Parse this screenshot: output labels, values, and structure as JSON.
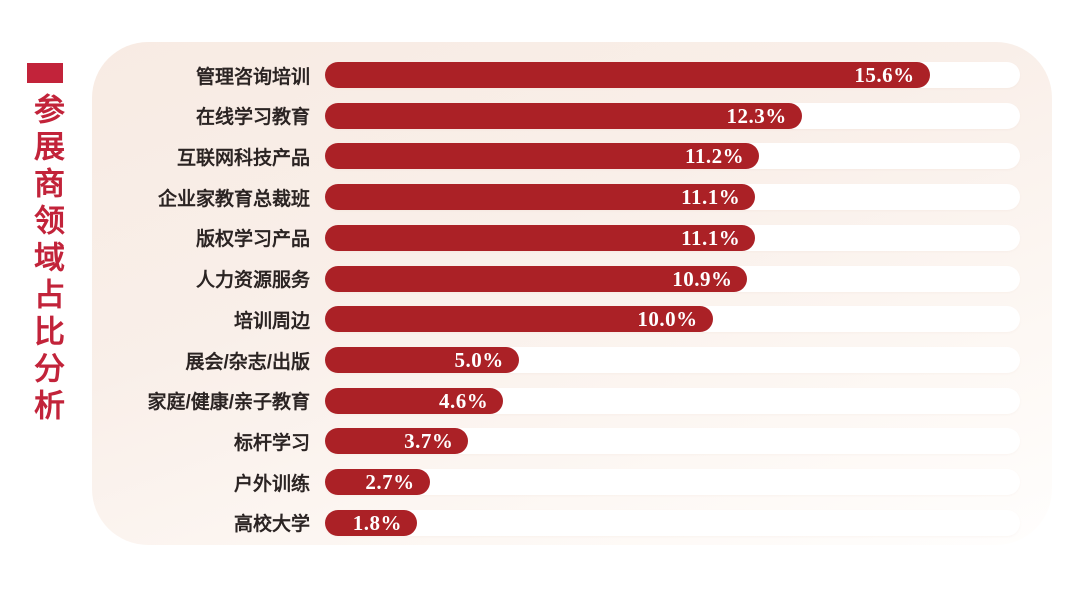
{
  "title": {
    "text": "参展商领域占比分析"
  },
  "colors": {
    "accent": "#c2233a",
    "bar": "#ab2126",
    "track": "#ffffff",
    "label": "#2b2423",
    "value_text": "#ffffff",
    "panel_top": "#f8ebe3",
    "page_bg": "#ffffff"
  },
  "chart_data": {
    "type": "bar",
    "orientation": "horizontal",
    "title": "参展商领域占比分析",
    "categories": [
      "管理咨询培训",
      "在线学习教育",
      "互联网科技产品",
      "企业家教育总裁班",
      "版权学习产品",
      "人力资源服务",
      "培训周边",
      "展会/杂志/出版",
      "家庭/健康/亲子教育",
      "标杆学习",
      "户外训练",
      "高校大学"
    ],
    "values": [
      15.6,
      12.3,
      11.2,
      11.1,
      11.1,
      10.9,
      10.0,
      5.0,
      4.6,
      3.7,
      2.7,
      1.8
    ],
    "value_labels": [
      "15.6%",
      "12.3%",
      "11.2%",
      "11.1%",
      "11.1%",
      "10.9%",
      "10.0%",
      "5.0%",
      "4.6%",
      "3.7%",
      "2.7%",
      "1.8%"
    ],
    "xlabel": "",
    "ylabel": "",
    "xlim": [
      0,
      16
    ],
    "grid": false,
    "legend": false,
    "max_bar_fraction_of_track": 0.87
  }
}
